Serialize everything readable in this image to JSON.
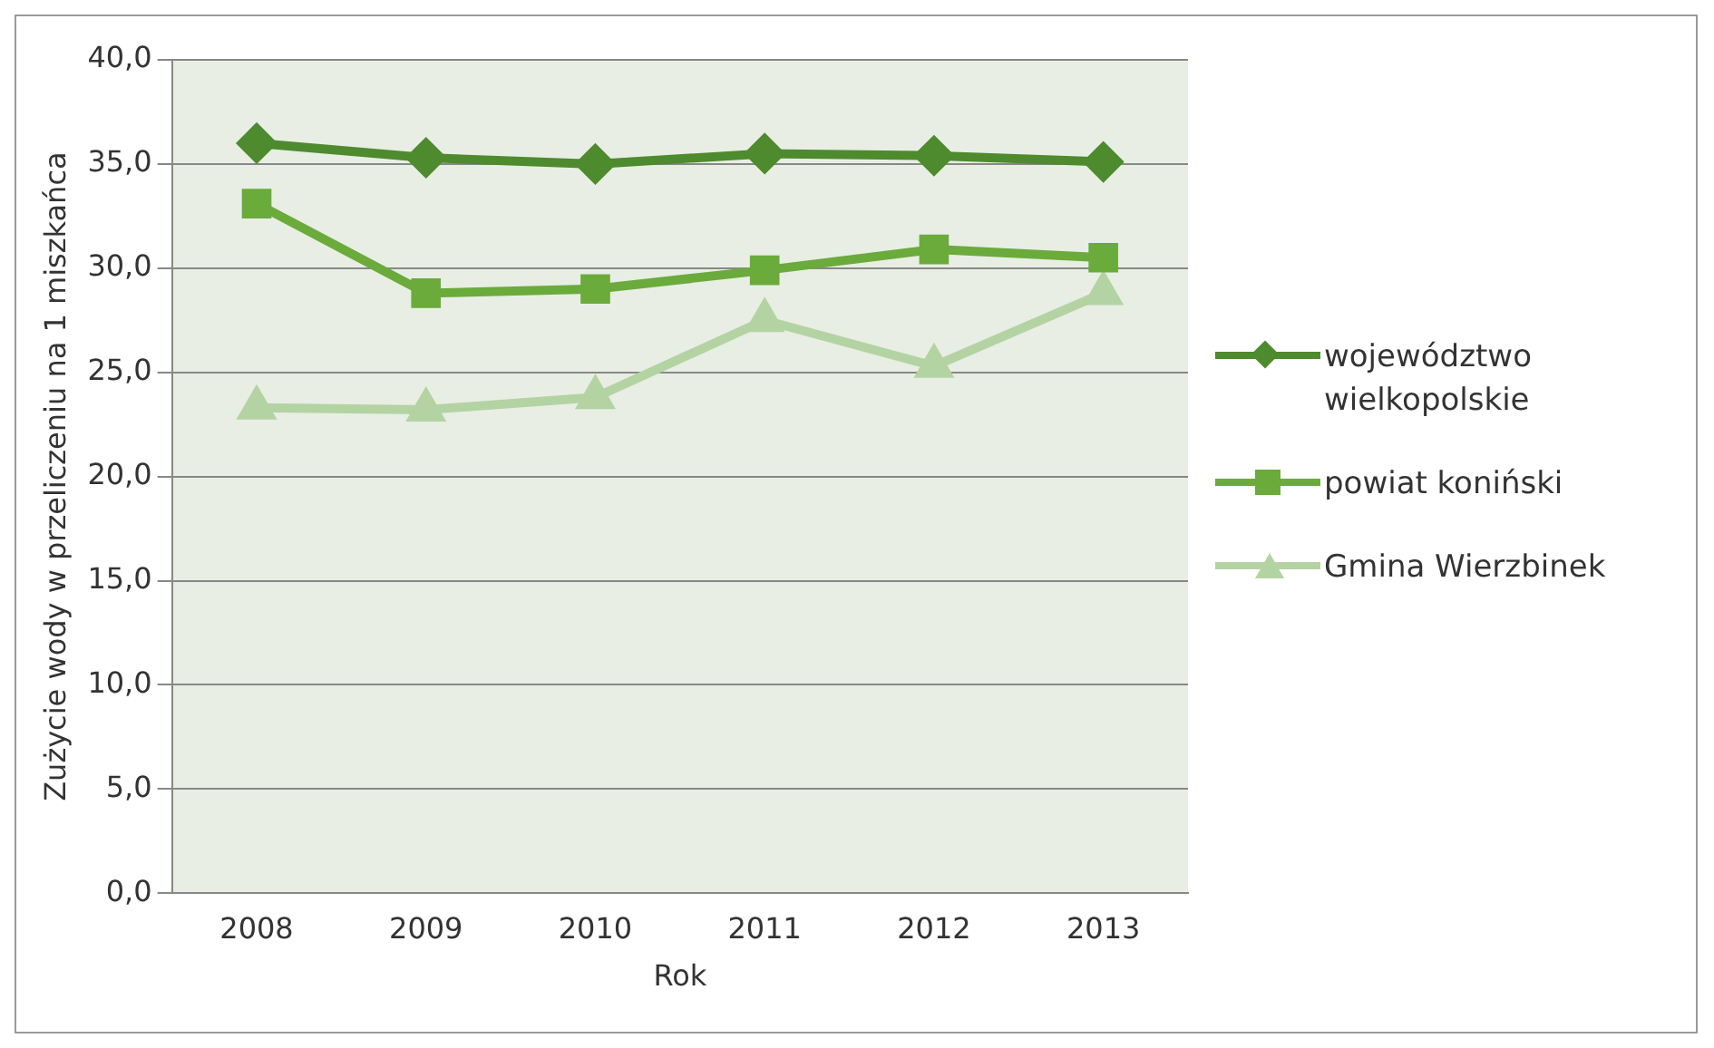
{
  "chart_data": {
    "type": "line",
    "xlabel": "Rok",
    "ylabel": "Zużycie wody w przeliczeniu na 1 miszkańca",
    "categories": [
      "2008",
      "2009",
      "2010",
      "2011",
      "2012",
      "2013"
    ],
    "series": [
      {
        "name": "województwo wielkopolskie",
        "color": "#4e8a2e",
        "marker": "diamond",
        "values": [
          36.0,
          35.3,
          35.0,
          35.5,
          35.4,
          35.1
        ]
      },
      {
        "name": "powiat koniński",
        "color": "#6aab3c",
        "marker": "square",
        "values": [
          33.1,
          28.8,
          29.0,
          29.9,
          30.9,
          30.5
        ]
      },
      {
        "name": "Gmina Wierzbinek",
        "color": "#b3d3a3",
        "marker": "triangle",
        "values": [
          23.3,
          23.2,
          23.8,
          27.5,
          25.3,
          28.8
        ]
      }
    ],
    "ylim": [
      0,
      40
    ],
    "yticks": [
      {
        "value": 0,
        "label": "0,0"
      },
      {
        "value": 5,
        "label": "5,0"
      },
      {
        "value": 10,
        "label": "10,0"
      },
      {
        "value": 15,
        "label": "15,0"
      },
      {
        "value": 20,
        "label": "20,0"
      },
      {
        "value": 25,
        "label": "25,0"
      },
      {
        "value": 30,
        "label": "30,0"
      },
      {
        "value": 35,
        "label": "35,0"
      },
      {
        "value": 40,
        "label": "40,0"
      }
    ],
    "grid": "y",
    "legend": "right"
  }
}
